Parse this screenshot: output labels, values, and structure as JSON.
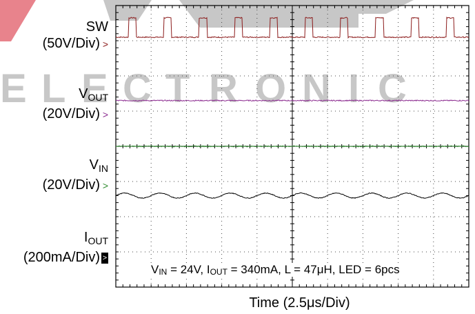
{
  "watermark": {
    "text": "ELECTRONIC",
    "letters": [
      "E",
      "L",
      "E",
      "C",
      "T",
      "R",
      "O",
      "N",
      "I",
      "C"
    ],
    "color": "#c7c7c7",
    "accent_color": "#e8838c"
  },
  "channels": [
    {
      "name": "SW",
      "name_main": "SW",
      "name_sub": "",
      "scale": "(50V/Div)",
      "color": "#8b1a1a",
      "marker": ">"
    },
    {
      "name": "VOUT",
      "name_main": "V",
      "name_sub": "OUT",
      "scale": "(20V/Div)",
      "color": "#8b2a8f",
      "marker": ">"
    },
    {
      "name": "VIN",
      "name_main": "V",
      "name_sub": "IN",
      "scale": "(20V/Div)",
      "color": "#2e8b2e",
      "marker": ">"
    },
    {
      "name": "IOUT",
      "name_main": "I",
      "name_sub": "OUT",
      "scale": "(200mA/Div)",
      "color": "#000000",
      "marker": ">"
    }
  ],
  "conditions": {
    "vin_main": "V",
    "vin_sub": "IN",
    "vin_val": " = 24V, ",
    "iout_main": "I",
    "iout_sub": "OUT",
    "iout_val": " = 340mA, L = 47μH, LED = 6pcs"
  },
  "chart_data": {
    "type": "line",
    "title": "",
    "xlabel": "Time (2.5μs/Div)",
    "ylabel": "",
    "grid": true,
    "x_divisions": 10,
    "y_divisions": 8,
    "x_per_div_us": 2.5,
    "x_range_us": [
      0,
      25
    ],
    "series": [
      {
        "name": "SW",
        "color": "#8b1a1a",
        "volts_per_div": 50,
        "waveform": "pulse",
        "pulse_count": 10,
        "pulse_period_us": 2.5,
        "pulse_width_us": 0.55,
        "low_level_div": 0.0,
        "high_level_div": 0.55,
        "offset_div": 7.1
      },
      {
        "name": "VOUT",
        "color": "#8b2a8f",
        "volts_per_div": 20,
        "waveform": "dc",
        "level_div": 0.0,
        "offset_div": 5.3
      },
      {
        "name": "VIN",
        "color": "#2e8b2e",
        "volts_per_div": 20,
        "waveform": "dc",
        "level_div": 0.0,
        "offset_div": 4.0
      },
      {
        "name": "IOUT",
        "color": "#000000",
        "amps_per_div": 0.2,
        "waveform": "ripple",
        "ripple_cycles": 10,
        "ripple_amplitude_div": 0.07,
        "offset_div": 2.6
      }
    ]
  },
  "xlabel_text": "Time (2.5μs/Div)"
}
